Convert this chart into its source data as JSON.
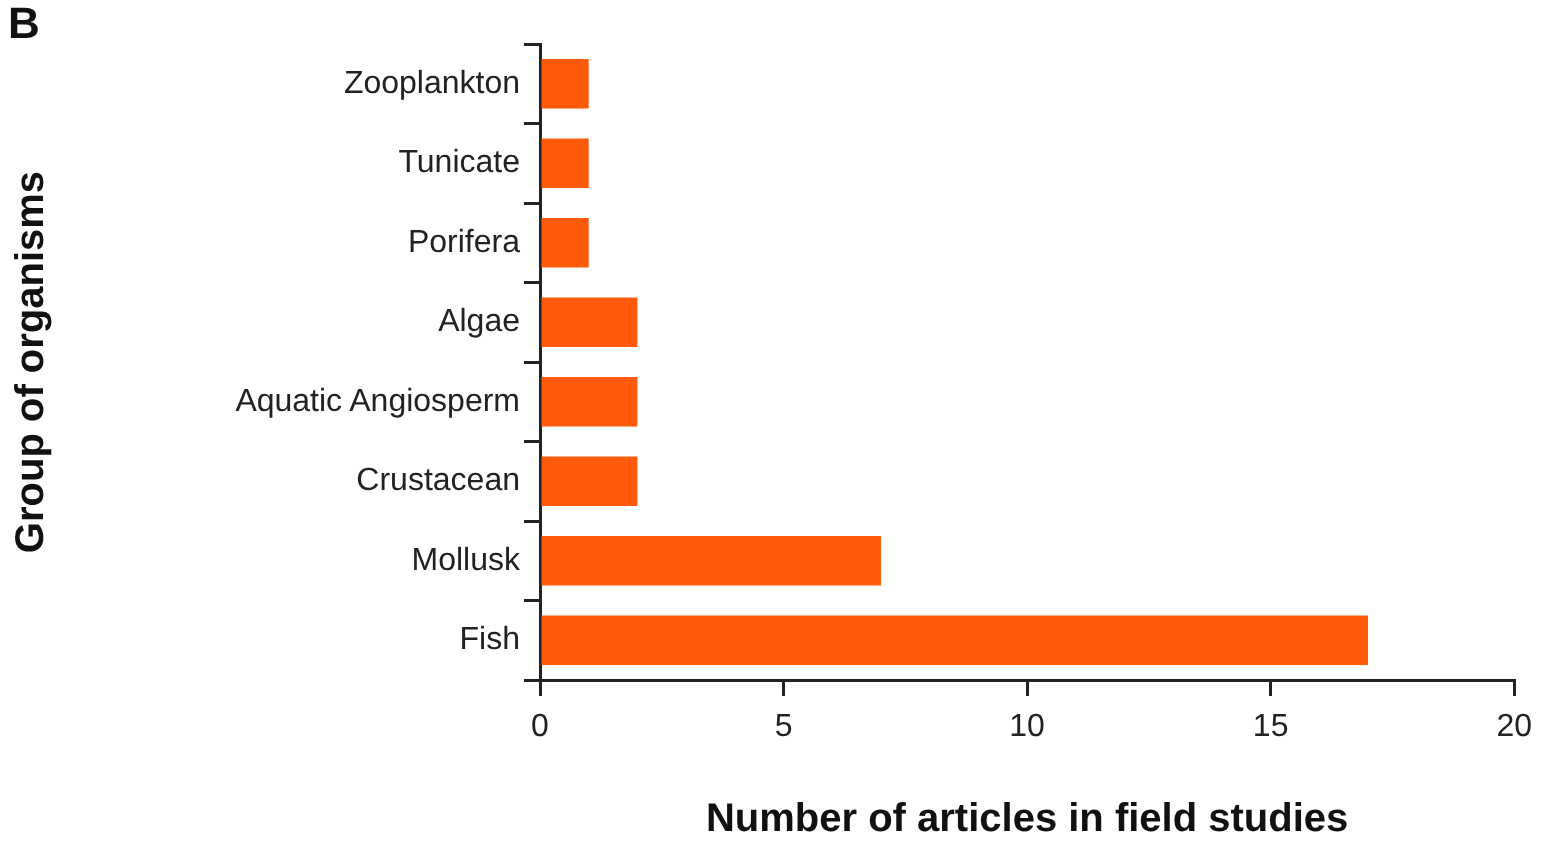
{
  "chart_data": {
    "type": "bar",
    "orientation": "horizontal",
    "categories": [
      "Zooplankton",
      "Tunicate",
      "Porifera",
      "Algae",
      "Aquatic Angiosperm",
      "Crustacean",
      "Mollusk",
      "Fish"
    ],
    "values": [
      1,
      1,
      1,
      2,
      2,
      2,
      7,
      17
    ],
    "color": "#ff5a0a",
    "xlabel": "Number of articles in field studies",
    "ylabel": "Group of organisms",
    "xlim": [
      0,
      20
    ],
    "xticks": [
      0,
      5,
      10,
      15,
      20
    ],
    "grid": false,
    "legend": false,
    "annotations": [
      "B"
    ]
  }
}
